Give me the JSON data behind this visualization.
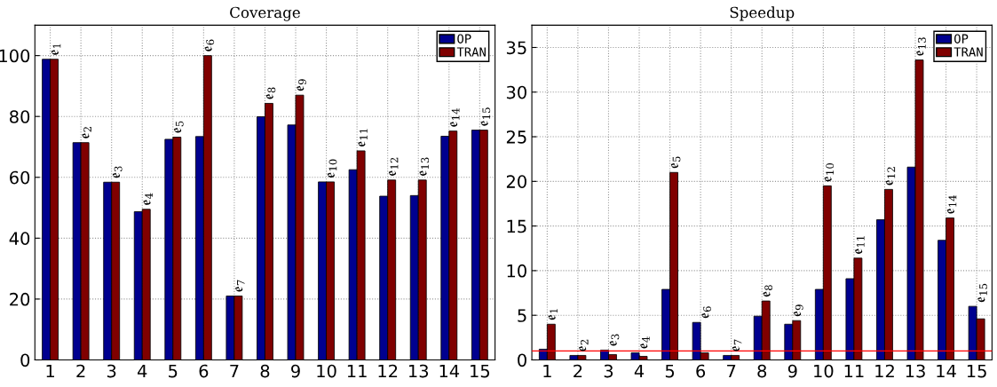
{
  "chart_data": [
    {
      "type": "bar",
      "title": "Coverage",
      "categories": [
        "1",
        "2",
        "3",
        "4",
        "5",
        "6",
        "7",
        "8",
        "9",
        "10",
        "11",
        "12",
        "13",
        "14",
        "15"
      ],
      "series": [
        {
          "name": "OP",
          "color": "#00008f",
          "values": [
            98.8,
            71.4,
            58.4,
            48.7,
            72.5,
            73.4,
            21,
            79.9,
            77.2,
            58.5,
            62.5,
            53.8,
            54,
            73.5,
            75.5
          ]
        },
        {
          "name": "TRAN",
          "color": "#800000",
          "values": [
            98.8,
            71.4,
            58.4,
            49.5,
            73.2,
            100,
            21,
            84.3,
            87,
            58.5,
            68.7,
            59.1,
            59.1,
            75.2,
            75.5
          ]
        }
      ],
      "ylim": [
        0,
        110
      ],
      "yticks": [
        0,
        20,
        40,
        60,
        80,
        100
      ],
      "grid": true,
      "legend": "top right",
      "annotations": [
        {
          "text": "𝔢$_{1}$",
          "x": "1",
          "y": 98.8
        },
        {
          "text": "𝔢$_{2}$",
          "x": "2",
          "y": 71.4
        },
        {
          "text": "𝔢$_{3}$",
          "x": "3",
          "y": 58.4
        },
        {
          "text": "𝔢$_{4}$",
          "x": "4",
          "y": 49.5
        },
        {
          "text": "𝔢$_{5}$",
          "x": "5",
          "y": 73.2
        },
        {
          "text": "𝔢$_{6}$",
          "x": "6",
          "y": 100
        },
        {
          "text": "𝔢$_{7}$",
          "x": "7",
          "y": 21
        },
        {
          "text": "𝔢$_{8}$",
          "x": "8",
          "y": 84.3
        },
        {
          "text": "𝔢$_{9}$",
          "x": "9",
          "y": 87
        },
        {
          "text": "𝔢$_{10}$",
          "x": "10",
          "y": 58.5
        },
        {
          "text": "𝔢$_{11}$",
          "x": "11",
          "y": 68.7
        },
        {
          "text": "𝔢$_{12}$",
          "x": "12",
          "y": 59.1
        },
        {
          "text": "𝔢$_{13}$",
          "x": "13",
          "y": 59.1
        },
        {
          "text": "𝔢$_{14}$",
          "x": "14",
          "y": 75.2
        },
        {
          "text": "𝔢$_{15}$",
          "x": "15",
          "y": 75.5
        }
      ]
    },
    {
      "type": "bar",
      "title": "Speedup",
      "categories": [
        "1",
        "2",
        "3",
        "4",
        "5",
        "6",
        "7",
        "8",
        "9",
        "10",
        "11",
        "12",
        "13",
        "14",
        "15"
      ],
      "series": [
        {
          "name": "OP",
          "color": "#00008f",
          "values": [
            1.2,
            0.5,
            1.1,
            0.8,
            7.9,
            4.2,
            0.5,
            4.9,
            4.0,
            7.9,
            9.1,
            15.7,
            21.6,
            13.4,
            6.0
          ]
        },
        {
          "name": "TRAN",
          "color": "#800000",
          "values": [
            4.0,
            0.5,
            0.6,
            0.4,
            21.0,
            0.8,
            0.5,
            6.6,
            4.4,
            19.5,
            11.4,
            19.1,
            33.6,
            15.9,
            4.6
          ]
        }
      ],
      "ylim": [
        0,
        37.5
      ],
      "yticks": [
        0,
        5,
        10,
        15,
        20,
        25,
        30,
        35
      ],
      "grid": true,
      "legend": "top right",
      "ref_lines": [
        {
          "axis": "y",
          "value": 1,
          "color": "#ff0000"
        }
      ],
      "annotations": [
        {
          "text": "𝔢$_{1}$",
          "x": "1",
          "y": 4.0
        },
        {
          "text": "𝔢$_{2}$",
          "x": "2",
          "y": 0.5
        },
        {
          "text": "𝔢$_{3}$",
          "x": "3",
          "y": 1.1
        },
        {
          "text": "𝔢$_{4}$",
          "x": "4",
          "y": 0.8
        },
        {
          "text": "𝔢$_{5}$",
          "x": "5",
          "y": 21.0
        },
        {
          "text": "𝔢$_{6}$",
          "x": "6",
          "y": 4.2
        },
        {
          "text": "𝔢$_{7}$",
          "x": "7",
          "y": 0.5
        },
        {
          "text": "𝔢$_{8}$",
          "x": "8",
          "y": 6.6
        },
        {
          "text": "𝔢$_{9}$",
          "x": "9",
          "y": 4.4
        },
        {
          "text": "𝔢$_{10}$",
          "x": "10",
          "y": 19.5
        },
        {
          "text": "𝔢$_{11}$",
          "x": "11",
          "y": 11.4
        },
        {
          "text": "𝔢$_{12}$",
          "x": "12",
          "y": 19.1
        },
        {
          "text": "𝔢$_{13}$",
          "x": "13",
          "y": 33.6
        },
        {
          "text": "𝔢$_{14}$",
          "x": "14",
          "y": 15.9
        },
        {
          "text": "𝔢$_{15}$",
          "x": "15",
          "y": 6.0
        }
      ]
    }
  ]
}
